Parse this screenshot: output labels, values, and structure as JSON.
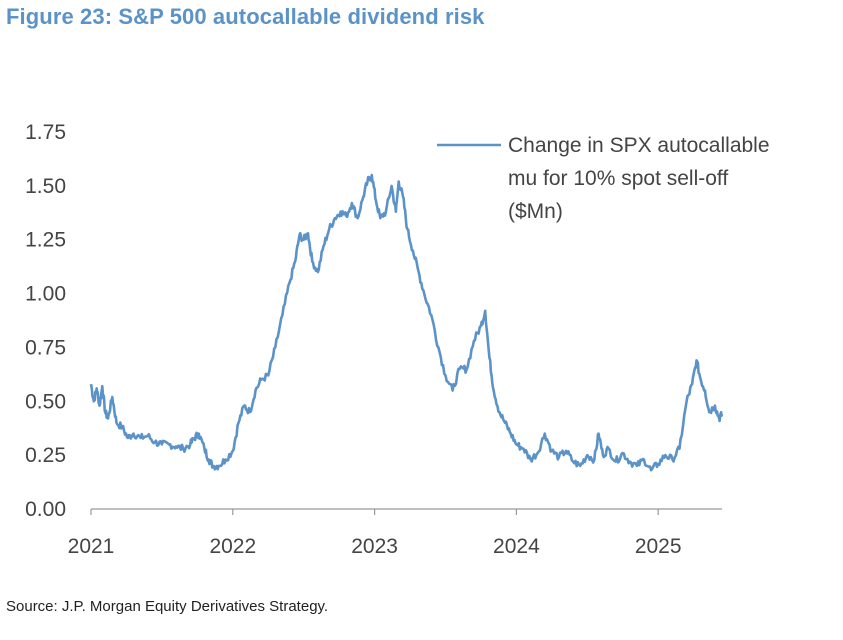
{
  "title": "Figure 23: S&P 500 autocallable dividend risk",
  "source": "Source: J.P. Morgan Equity Derivatives Strategy.",
  "colors": {
    "line": "#5b93c8",
    "title": "#5b93c8",
    "axis": "#999999",
    "text": "#444444"
  },
  "chart_data": {
    "type": "line",
    "title": "Figure 23: S&P 500 autocallable dividend risk",
    "xlabel": "",
    "ylabel": "",
    "xlim": [
      2021.0,
      2025.45
    ],
    "ylim": [
      0.0,
      1.75
    ],
    "yticks": [
      "0.00",
      "0.25",
      "0.50",
      "0.75",
      "1.00",
      "1.25",
      "1.50",
      "1.75"
    ],
    "yticks_values": [
      0,
      0.25,
      0.5,
      0.75,
      1.0,
      1.25,
      1.5,
      1.75
    ],
    "xticks": [
      "2021",
      "2022",
      "2023",
      "2024",
      "2025"
    ],
    "xticks_values": [
      2021,
      2022,
      2023,
      2024,
      2025
    ],
    "grid": false,
    "legend_position": "top-right",
    "series": [
      {
        "name": "Change in SPX autocallable mu for 10% spot sell-off ($Mn)",
        "legend_lines": [
          "Change in SPX autocallable",
          "mu for 10% spot sell-off",
          "($Mn)"
        ],
        "x": [
          2021.0,
          2021.02,
          2021.04,
          2021.06,
          2021.08,
          2021.1,
          2021.12,
          2021.15,
          2021.18,
          2021.22,
          2021.26,
          2021.3,
          2021.35,
          2021.4,
          2021.45,
          2021.5,
          2021.55,
          2021.6,
          2021.65,
          2021.7,
          2021.73,
          2021.76,
          2021.8,
          2021.83,
          2021.86,
          2021.9,
          2021.95,
          2022.0,
          2022.04,
          2022.08,
          2022.12,
          2022.16,
          2022.2,
          2022.25,
          2022.3,
          2022.35,
          2022.4,
          2022.44,
          2022.47,
          2022.5,
          2022.53,
          2022.56,
          2022.6,
          2022.64,
          2022.68,
          2022.72,
          2022.76,
          2022.8,
          2022.84,
          2022.88,
          2022.92,
          2022.95,
          2022.98,
          2023.01,
          2023.04,
          2023.08,
          2023.12,
          2023.15,
          2023.17,
          2023.2,
          2023.23,
          2023.27,
          2023.31,
          2023.35,
          2023.4,
          2023.45,
          2023.5,
          2023.55,
          2023.6,
          2023.65,
          2023.7,
          2023.75,
          2023.78,
          2023.81,
          2023.84,
          2023.88,
          2023.92,
          2023.96,
          2024.0,
          2024.05,
          2024.1,
          2024.15,
          2024.2,
          2024.25,
          2024.3,
          2024.35,
          2024.4,
          2024.45,
          2024.5,
          2024.55,
          2024.58,
          2024.61,
          2024.65,
          2024.7,
          2024.75,
          2024.8,
          2024.85,
          2024.9,
          2024.95,
          2025.0,
          2025.05,
          2025.1,
          2025.15,
          2025.2,
          2025.24,
          2025.27,
          2025.3,
          2025.33,
          2025.36,
          2025.4,
          2025.43,
          2025.45
        ],
        "values": [
          0.58,
          0.5,
          0.56,
          0.48,
          0.57,
          0.45,
          0.42,
          0.52,
          0.4,
          0.38,
          0.33,
          0.35,
          0.33,
          0.34,
          0.31,
          0.3,
          0.3,
          0.29,
          0.28,
          0.3,
          0.33,
          0.35,
          0.28,
          0.23,
          0.2,
          0.2,
          0.23,
          0.27,
          0.4,
          0.48,
          0.45,
          0.55,
          0.6,
          0.62,
          0.75,
          0.9,
          1.05,
          1.15,
          1.27,
          1.25,
          1.28,
          1.15,
          1.1,
          1.22,
          1.3,
          1.35,
          1.38,
          1.36,
          1.42,
          1.35,
          1.45,
          1.52,
          1.55,
          1.43,
          1.35,
          1.38,
          1.5,
          1.38,
          1.52,
          1.45,
          1.3,
          1.2,
          1.1,
          1.0,
          0.9,
          0.75,
          0.62,
          0.55,
          0.65,
          0.65,
          0.78,
          0.85,
          0.92,
          0.7,
          0.55,
          0.45,
          0.4,
          0.35,
          0.3,
          0.28,
          0.23,
          0.26,
          0.35,
          0.27,
          0.24,
          0.27,
          0.22,
          0.2,
          0.25,
          0.23,
          0.35,
          0.25,
          0.28,
          0.22,
          0.26,
          0.22,
          0.2,
          0.23,
          0.18,
          0.21,
          0.25,
          0.23,
          0.28,
          0.5,
          0.58,
          0.69,
          0.6,
          0.55,
          0.45,
          0.48,
          0.42,
          0.44
        ]
      }
    ]
  }
}
